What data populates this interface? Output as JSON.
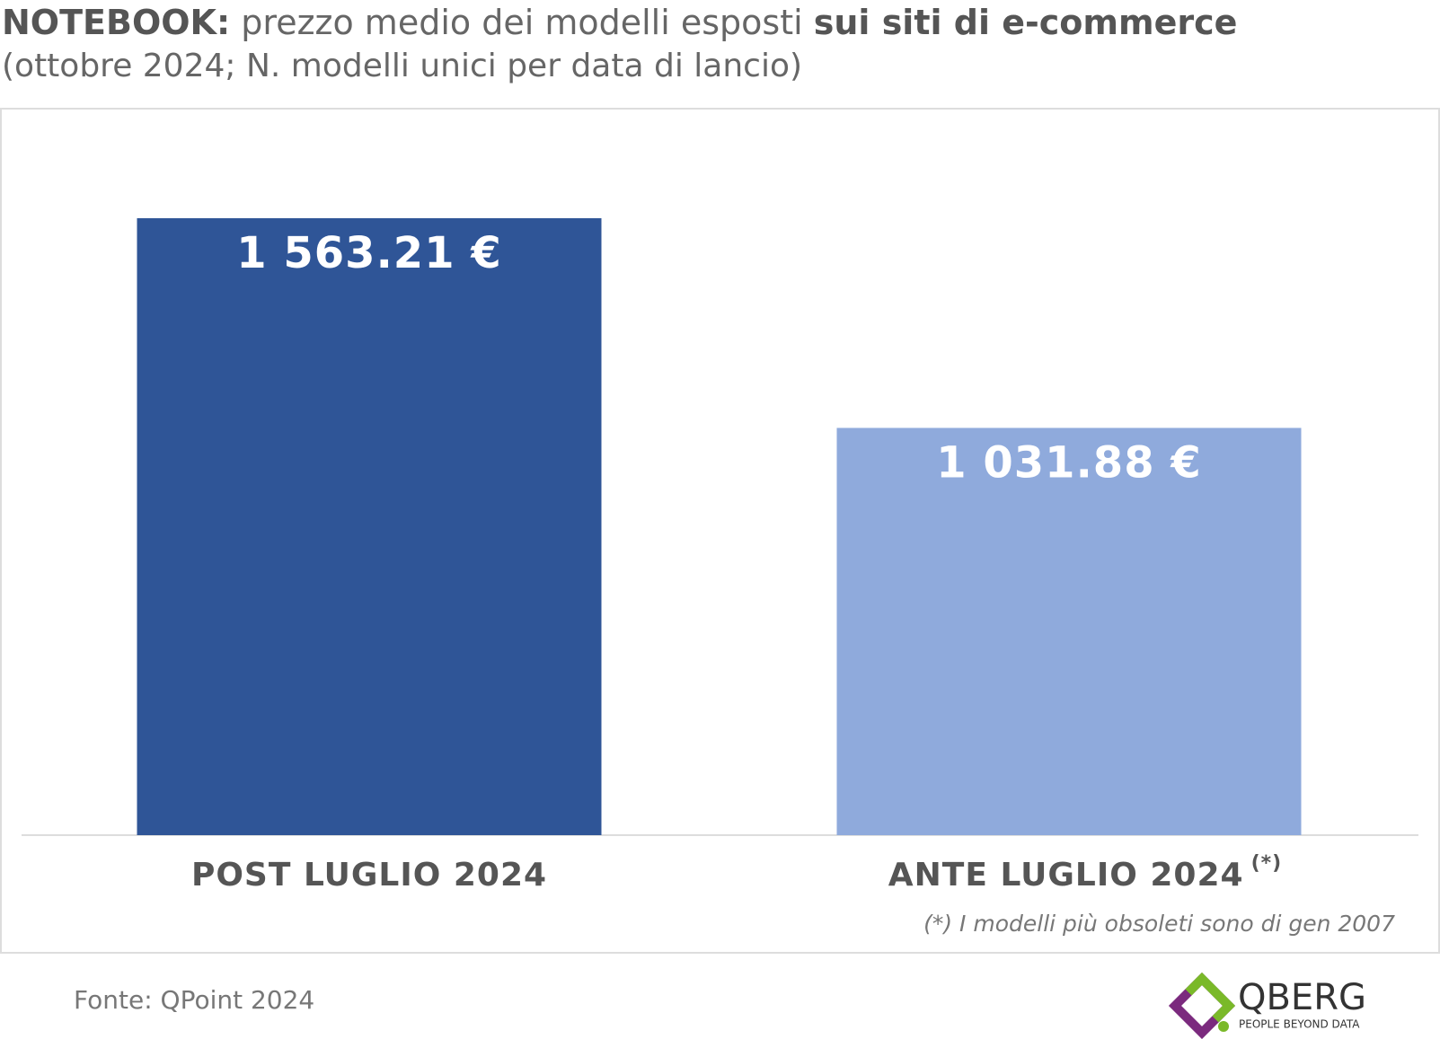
{
  "chart_data": {
    "type": "bar",
    "title_parts": [
      "NOTEBOOK:",
      "prezzo medio dei modelli esposti",
      "sui siti di e-commerce"
    ],
    "subtitle": "(ottobre 2024; N. modelli unici per data di lancio)",
    "categories": [
      "POST LUGLIO 2024",
      "ANTE LUGLIO 2024"
    ],
    "category_notes": [
      null,
      "(*)"
    ],
    "values": [
      1563.21,
      1031.88
    ],
    "value_labels": [
      "1 563.21 €",
      "1 031.88 €"
    ],
    "colors": [
      "#2f5597",
      "#8faadc"
    ],
    "footnote": "(*) I modelli più obsoleti sono di gen 2007",
    "source": "Fonte: QPoint 2024",
    "logo": {
      "name": "QBERG",
      "tagline": "PEOPLE BEYOND DATA"
    }
  }
}
